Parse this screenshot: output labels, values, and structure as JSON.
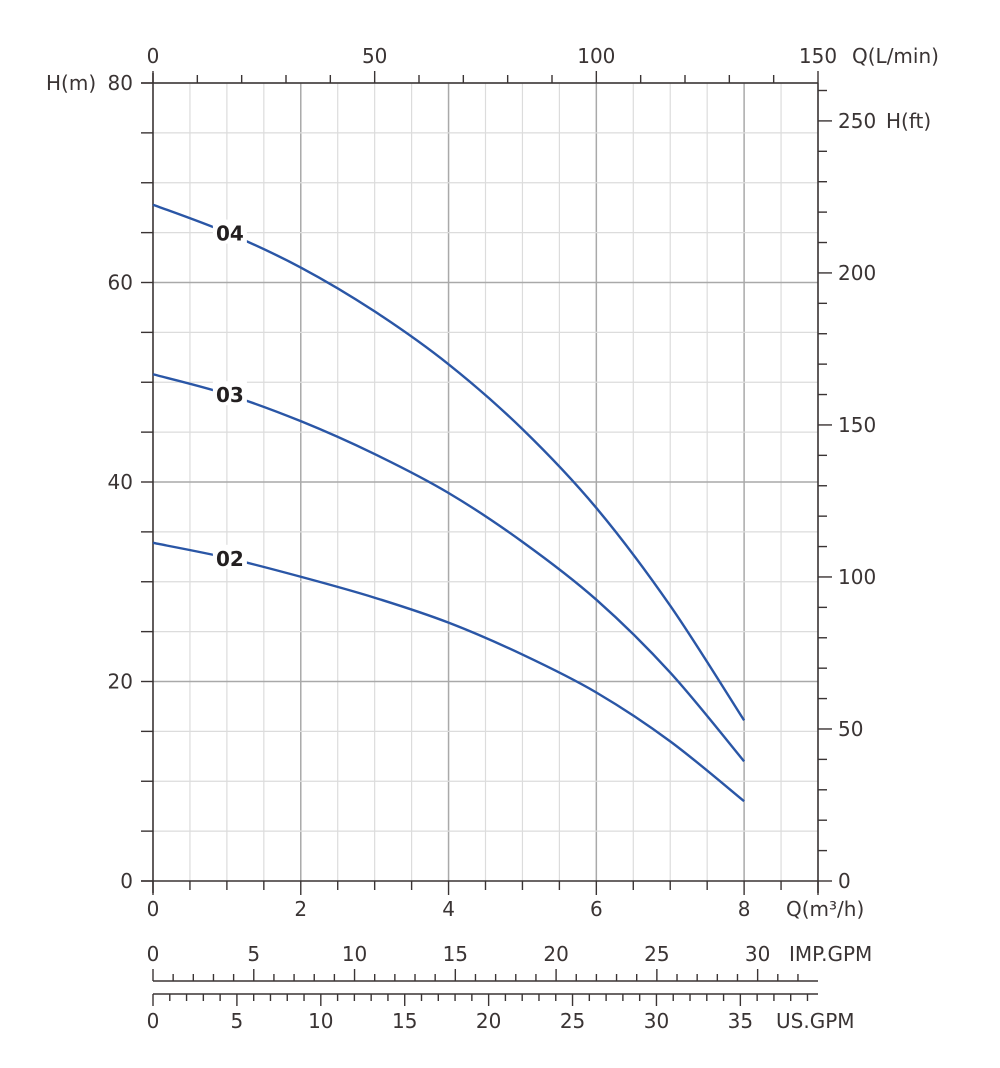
{
  "chart_data": {
    "type": "line",
    "x_axis": {
      "label": "Q(m³/h)",
      "range": [
        0,
        9
      ],
      "ticks": [
        0,
        2,
        4,
        6,
        8
      ],
      "minor_step": 0.5
    },
    "y_axis": {
      "label": "H(m)",
      "range": [
        0,
        80
      ],
      "ticks": [
        0,
        20,
        40,
        60,
        80
      ],
      "minor_step": 5
    },
    "top_axis": {
      "label": "Q(L/min)",
      "ticks": [
        0,
        50,
        100,
        150
      ],
      "minor_step": 10
    },
    "right_axis": {
      "label": "H(ft)",
      "ticks": [
        0,
        50,
        100,
        150,
        200,
        250
      ],
      "minor_step": 10
    },
    "imp_axis": {
      "label": "IMP.GPM",
      "ticks": [
        0,
        5,
        10,
        15,
        20,
        25,
        30
      ],
      "minor_step": 1
    },
    "us_axis": {
      "label": "US.GPM",
      "ticks": [
        0,
        5,
        10,
        15,
        20,
        25,
        30,
        35
      ],
      "minor_step": 1
    },
    "grid": true,
    "line_color": "#2a56a6",
    "series": [
      {
        "name": "04",
        "x": [
          0,
          1,
          2,
          3,
          4,
          5,
          6,
          7,
          8
        ],
        "y": [
          67.8,
          65.0,
          61.5,
          57.1,
          51.8,
          45.3,
          37.4,
          27.6,
          16.1
        ]
      },
      {
        "name": "03",
        "x": [
          0,
          1,
          2,
          3,
          4,
          5,
          6,
          7,
          8
        ],
        "y": [
          50.8,
          48.8,
          46.1,
          42.8,
          38.9,
          34.0,
          28.2,
          20.9,
          12.0
        ]
      },
      {
        "name": "02",
        "x": [
          0,
          1,
          2,
          3,
          4,
          5,
          6,
          7,
          8
        ],
        "y": [
          33.9,
          32.4,
          30.5,
          28.4,
          25.9,
          22.7,
          18.9,
          14.0,
          8.0
        ]
      }
    ]
  }
}
